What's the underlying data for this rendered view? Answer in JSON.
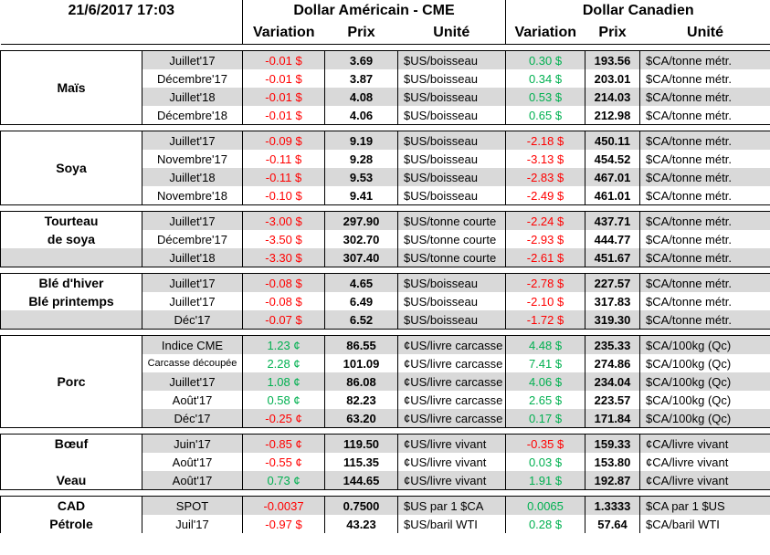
{
  "header": {
    "timestamp": "21/6/2017 17:03",
    "sections": [
      "Dollar Américain - CME",
      "Dollar Canadien"
    ],
    "columns": [
      "Variation",
      "Prix",
      "Unité"
    ]
  },
  "groups": [
    {
      "label": "Maïs",
      "rows": [
        [
          "Juillet'17",
          "-0.01 $",
          "3.69",
          "$US/boisseau",
          "0.30 $",
          "193.56",
          "$CA/tonne métr."
        ],
        [
          "Décembre'17",
          "-0.01 $",
          "3.87",
          "$US/boisseau",
          "0.34 $",
          "203.01",
          "$CA/tonne métr."
        ],
        [
          "Juillet'18",
          "-0.01 $",
          "4.08",
          "$US/boisseau",
          "0.53 $",
          "214.03",
          "$CA/tonne métr."
        ],
        [
          "Décembre'18",
          "-0.01 $",
          "4.06",
          "$US/boisseau",
          "0.65 $",
          "212.98",
          "$CA/tonne métr."
        ]
      ]
    },
    {
      "label": "Soya",
      "rows": [
        [
          "Juillet'17",
          "-0.09 $",
          "9.19",
          "$US/boisseau",
          "-2.18 $",
          "450.11",
          "$CA/tonne métr."
        ],
        [
          "Novembre'17",
          "-0.11 $",
          "9.28",
          "$US/boisseau",
          "-3.13 $",
          "454.52",
          "$CA/tonne métr."
        ],
        [
          "Juillet'18",
          "-0.11 $",
          "9.53",
          "$US/boisseau",
          "-2.83 $",
          "467.01",
          "$CA/tonne métr."
        ],
        [
          "Novembre'18",
          "-0.10 $",
          "9.41",
          "$US/boisseau",
          "-2.49 $",
          "461.01",
          "$CA/tonne métr."
        ]
      ]
    },
    {
      "labels": [
        "Tourteau",
        "de soya",
        null
      ],
      "rows": [
        [
          "Juillet'17",
          "-3.00 $",
          "297.90",
          "$US/tonne courte",
          "-2.24 $",
          "437.71",
          "$CA/tonne métr."
        ],
        [
          "Décembre'17",
          "-3.50 $",
          "302.70",
          "$US/tonne courte",
          "-2.93 $",
          "444.77",
          "$CA/tonne métr."
        ],
        [
          "Juillet'18",
          "-3.30 $",
          "307.40",
          "$US/tonne courte",
          "-2.61 $",
          "451.67",
          "$CA/tonne métr."
        ]
      ]
    },
    {
      "labels": [
        "Blé d'hiver",
        "Blé printemps",
        null
      ],
      "rows": [
        [
          "Juillet'17",
          "-0.08 $",
          "4.65",
          "$US/boisseau",
          "-2.78 $",
          "227.57",
          "$CA/tonne métr."
        ],
        [
          "Juillet'17",
          "-0.08 $",
          "6.49",
          "$US/boisseau",
          "-2.10 $",
          "317.83",
          "$CA/tonne métr."
        ],
        [
          "Déc'17",
          "-0.07 $",
          "6.52",
          "$US/boisseau",
          "-1.72 $",
          "319.30",
          "$CA/tonne métr."
        ]
      ]
    },
    {
      "label": "Porc",
      "rows": [
        [
          "Indice CME",
          "1.23 ¢",
          "86.55",
          "¢US/livre carcasse",
          "4.48 $",
          "235.33",
          "$CA/100kg (Qc)"
        ],
        [
          "Carcasse découpée",
          "2.28 ¢",
          "101.09",
          "¢US/livre carcasse",
          "7.41 $",
          "274.86",
          "$CA/100kg (Qc)"
        ],
        [
          "Juillet'17",
          "1.08 ¢",
          "86.08",
          "¢US/livre carcasse",
          "4.06 $",
          "234.04",
          "$CA/100kg (Qc)"
        ],
        [
          "Août'17",
          "0.58 ¢",
          "82.23",
          "¢US/livre carcasse",
          "2.65 $",
          "223.57",
          "$CA/100kg (Qc)"
        ],
        [
          "Déc'17",
          "-0.25 ¢",
          "63.20",
          "¢US/livre carcasse",
          "0.17 $",
          "171.84",
          "$CA/100kg (Qc)"
        ]
      ]
    },
    {
      "labels": [
        "Bœuf",
        null,
        "Veau"
      ],
      "rows": [
        [
          "Juin'17",
          "-0.85 ¢",
          "119.50",
          "¢US/livre vivant",
          "-0.35 $",
          "159.33",
          "¢CA/livre vivant"
        ],
        [
          "Août'17",
          "-0.55 ¢",
          "115.35",
          "¢US/livre vivant",
          "0.03 $",
          "153.80",
          "¢CA/livre vivant"
        ],
        [
          "Août'17",
          "0.73 ¢",
          "144.65",
          "¢US/livre vivant",
          "1.91 $",
          "192.87",
          "¢CA/livre vivant"
        ]
      ]
    },
    {
      "labels": [
        "CAD",
        "Pétrole"
      ],
      "rows": [
        [
          "SPOT",
          "-0.0037",
          "0.7500",
          "$US par 1 $CA",
          "0.0065",
          "1.3333",
          "$CA par 1 $US"
        ],
        [
          "Juil'17",
          "-0.97 $",
          "43.23",
          "$US/baril WTI",
          "0.28 $",
          "57.64",
          "$CA/baril WTI"
        ]
      ]
    }
  ]
}
